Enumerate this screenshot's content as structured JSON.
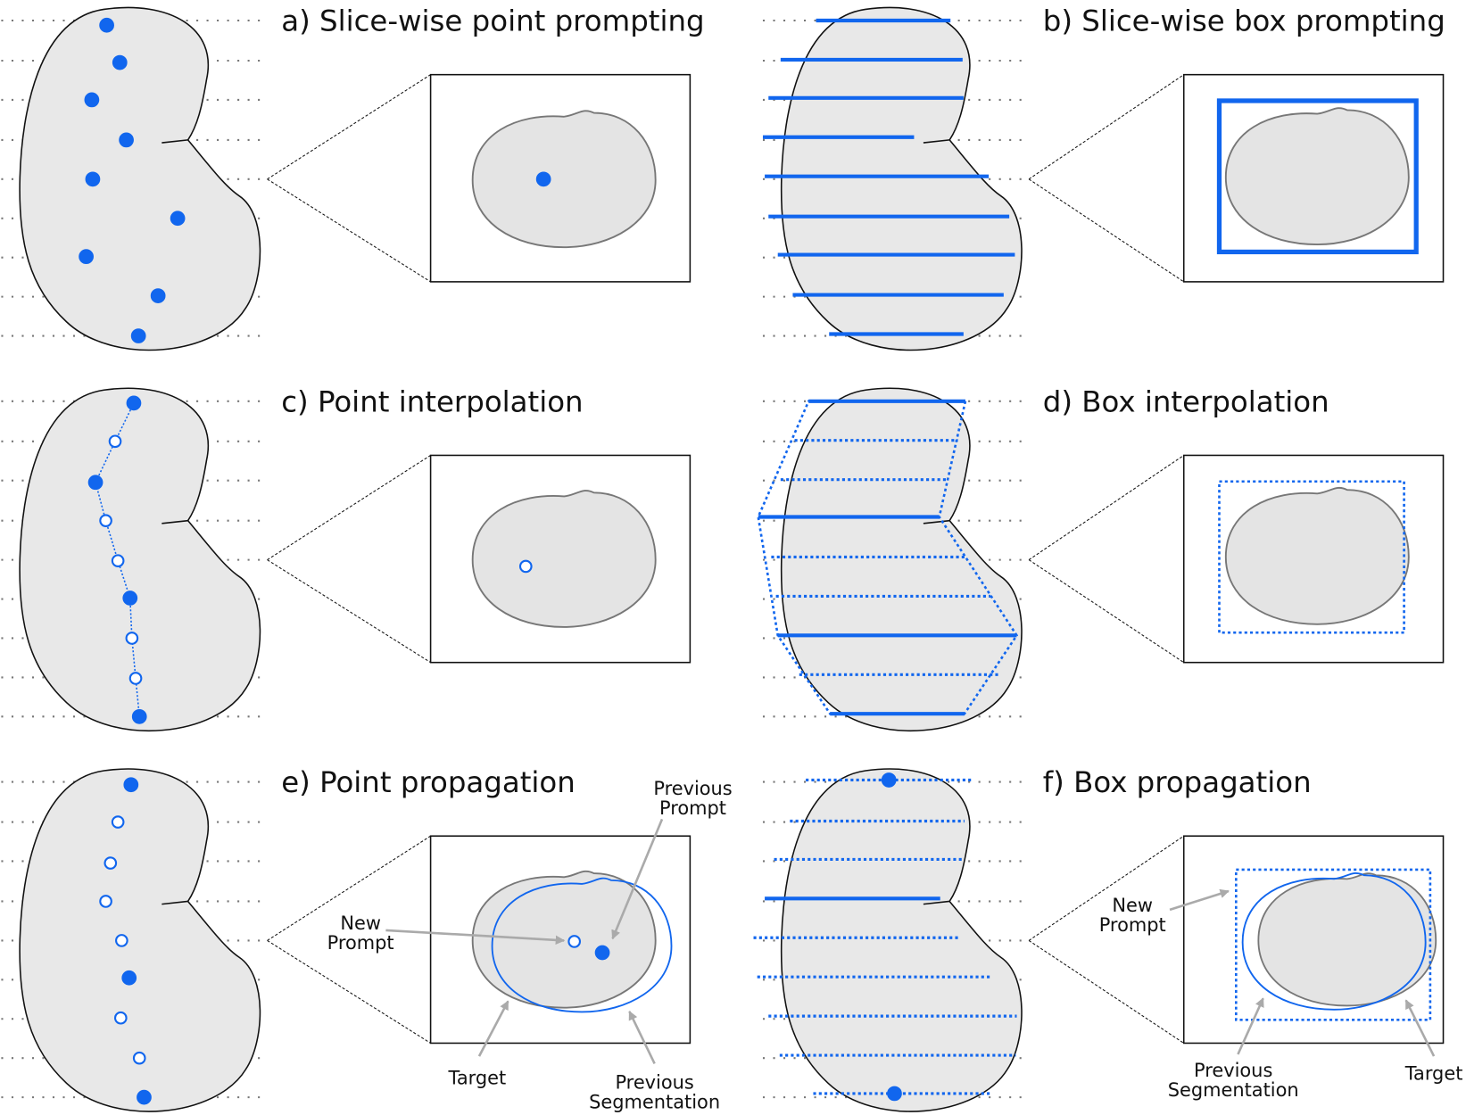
{
  "panels": [
    {
      "title": "a) Slice-wise point prompting"
    },
    {
      "title": "b) Slice-wise box prompting"
    },
    {
      "title": "c) Point interpolation"
    },
    {
      "title": "d) Box interpolation"
    },
    {
      "title": "e) Point propagation",
      "annotations": [
        {
          "lines": [
            "Previous",
            "Prompt"
          ]
        },
        {
          "lines": [
            "New",
            "Prompt"
          ]
        },
        {
          "lines": [
            "Target"
          ]
        },
        {
          "lines": [
            "Previous",
            "Segmentation"
          ]
        }
      ]
    },
    {
      "title": "f) Box propagation",
      "annotations": [
        {
          "lines": [
            "New",
            "Prompt"
          ]
        },
        {
          "lines": [
            "Previous",
            "Segmentation"
          ]
        },
        {
          "lines": [
            "Target"
          ]
        }
      ]
    }
  ]
}
